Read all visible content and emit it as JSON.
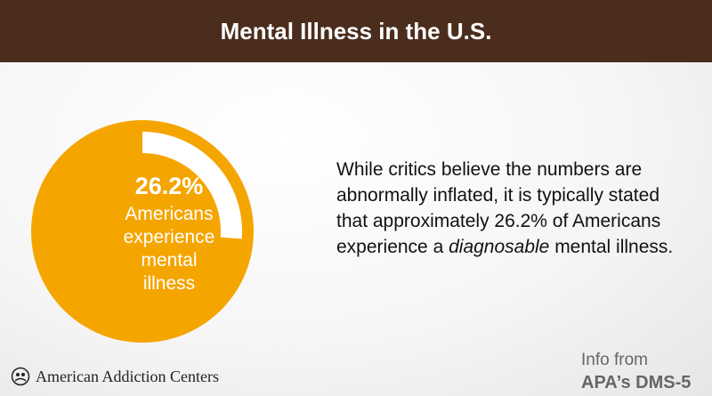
{
  "chart_data": {
    "type": "donut",
    "title": "Mental Illness in the U.S.",
    "values": [
      26.2
    ],
    "value_labels": [
      "26.2%"
    ],
    "color": "#f5a500",
    "highlight_color": "#ffffff",
    "caption": "Americans experience mental illness",
    "body": [
      "While critics believe the numbers are abnormally inflated, it is typically stated that approximately 26.2% of Americans experience a ",
      "diagnosable",
      " mental illness."
    ],
    "logo": "American Addiction Centers",
    "source": [
      "Info from",
      "APA’s DMS-5"
    ]
  }
}
